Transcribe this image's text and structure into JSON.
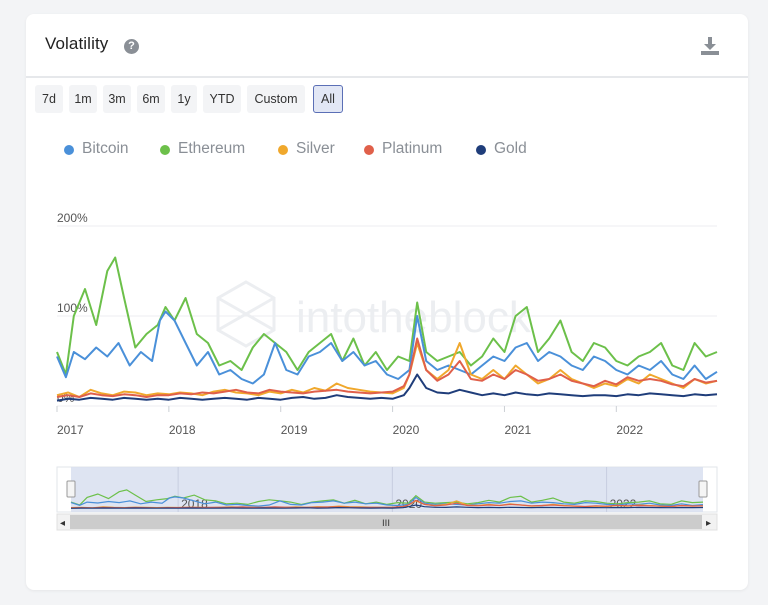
{
  "header": {
    "title": "Volatility",
    "help_glyph": "?",
    "download_icon": "download-icon"
  },
  "range_buttons": [
    {
      "label": "7d",
      "active": false
    },
    {
      "label": "1m",
      "active": false
    },
    {
      "label": "3m",
      "active": false
    },
    {
      "label": "6m",
      "active": false
    },
    {
      "label": "1y",
      "active": false
    },
    {
      "label": "YTD",
      "active": false
    },
    {
      "label": "Custom",
      "active": false
    },
    {
      "label": "All",
      "active": true
    }
  ],
  "watermark": "intotheblock",
  "colors": {
    "Bitcoin": "#4a90d9",
    "Ethereum": "#6cc04a",
    "Silver": "#f0a82c",
    "Platinum": "#e0604a",
    "Gold": "#1f3d7a",
    "navigator_fill": "#d8dff0",
    "gridline": "#eceef1"
  },
  "navigator": {
    "labels": [
      "2018",
      "2020",
      "2022"
    ],
    "scroll_grip": "III"
  },
  "chart_data": {
    "type": "line",
    "title": "",
    "xlabel": "",
    "ylabel": "",
    "ylim": [
      0,
      200
    ],
    "y_ticks": [
      "200%",
      "100%",
      "0%"
    ],
    "y_tick_values": [
      200,
      100,
      0
    ],
    "x_ticks": [
      "2017",
      "2018",
      "2019",
      "2020",
      "2021",
      "2022"
    ],
    "x_tick_values": [
      2017.0,
      2018.0,
      2019.0,
      2020.0,
      2021.0,
      2022.0
    ],
    "xlim": [
      2017.0,
      2022.9
    ],
    "grid": true,
    "legend_position": "top-left",
    "series": [
      {
        "name": "Bitcoin",
        "x": [
          2017.0,
          2017.08,
          2017.15,
          2017.25,
          2017.35,
          2017.45,
          2017.55,
          2017.65,
          2017.75,
          2017.85,
          2017.92,
          2017.97,
          2018.05,
          2018.15,
          2018.25,
          2018.35,
          2018.45,
          2018.55,
          2018.65,
          2018.75,
          2018.85,
          2018.95,
          2019.05,
          2019.15,
          2019.25,
          2019.35,
          2019.45,
          2019.55,
          2019.65,
          2019.75,
          2019.85,
          2019.95,
          2020.05,
          2020.15,
          2020.22,
          2020.3,
          2020.4,
          2020.5,
          2020.6,
          2020.7,
          2020.8,
          2020.9,
          2021.0,
          2021.1,
          2021.2,
          2021.3,
          2021.4,
          2021.5,
          2021.6,
          2021.7,
          2021.8,
          2021.9,
          2022.0,
          2022.1,
          2022.2,
          2022.3,
          2022.4,
          2022.5,
          2022.6,
          2022.7,
          2022.8,
          2022.9
        ],
        "values": [
          55,
          32,
          60,
          52,
          65,
          55,
          70,
          45,
          60,
          50,
          95,
          105,
          95,
          70,
          45,
          60,
          35,
          40,
          30,
          25,
          35,
          70,
          40,
          35,
          55,
          60,
          70,
          50,
          60,
          45,
          50,
          35,
          30,
          40,
          100,
          50,
          40,
          45,
          40,
          35,
          45,
          55,
          50,
          65,
          70,
          50,
          60,
          55,
          45,
          40,
          55,
          50,
          40,
          35,
          45,
          40,
          50,
          35,
          30,
          45,
          30,
          38
        ]
      },
      {
        "name": "Ethereum",
        "x": [
          2017.0,
          2017.08,
          2017.15,
          2017.25,
          2017.35,
          2017.45,
          2017.52,
          2017.6,
          2017.7,
          2017.8,
          2017.9,
          2017.97,
          2018.05,
          2018.15,
          2018.25,
          2018.35,
          2018.45,
          2018.55,
          2018.65,
          2018.75,
          2018.85,
          2018.95,
          2019.05,
          2019.15,
          2019.25,
          2019.35,
          2019.45,
          2019.55,
          2019.65,
          2019.75,
          2019.85,
          2019.95,
          2020.05,
          2020.15,
          2020.22,
          2020.3,
          2020.4,
          2020.5,
          2020.6,
          2020.7,
          2020.8,
          2020.9,
          2021.0,
          2021.1,
          2021.2,
          2021.3,
          2021.4,
          2021.5,
          2021.6,
          2021.7,
          2021.8,
          2021.9,
          2022.0,
          2022.1,
          2022.2,
          2022.3,
          2022.4,
          2022.5,
          2022.6,
          2022.7,
          2022.8,
          2022.9
        ],
        "values": [
          60,
          35,
          100,
          130,
          90,
          150,
          165,
          120,
          65,
          80,
          90,
          110,
          95,
          120,
          80,
          70,
          45,
          50,
          40,
          65,
          80,
          70,
          60,
          40,
          60,
          70,
          80,
          50,
          75,
          45,
          60,
          40,
          55,
          50,
          115,
          60,
          50,
          55,
          60,
          45,
          55,
          75,
          60,
          100,
          110,
          60,
          75,
          95,
          60,
          50,
          70,
          65,
          50,
          45,
          55,
          60,
          70,
          45,
          40,
          70,
          55,
          60
        ]
      },
      {
        "name": "Silver",
        "x": [
          2017.0,
          2017.1,
          2017.2,
          2017.3,
          2017.4,
          2017.5,
          2017.6,
          2017.7,
          2017.8,
          2017.9,
          2018.0,
          2018.1,
          2018.2,
          2018.3,
          2018.4,
          2018.5,
          2018.6,
          2018.7,
          2018.8,
          2018.9,
          2019.0,
          2019.1,
          2019.2,
          2019.3,
          2019.4,
          2019.5,
          2019.6,
          2019.7,
          2019.8,
          2019.9,
          2020.0,
          2020.1,
          2020.15,
          2020.22,
          2020.3,
          2020.4,
          2020.5,
          2020.6,
          2020.7,
          2020.8,
          2020.9,
          2021.0,
          2021.1,
          2021.2,
          2021.3,
          2021.4,
          2021.5,
          2021.6,
          2021.7,
          2021.8,
          2021.9,
          2022.0,
          2022.1,
          2022.2,
          2022.3,
          2022.4,
          2022.5,
          2022.6,
          2022.7,
          2022.8,
          2022.9
        ],
        "values": [
          12,
          15,
          10,
          18,
          14,
          12,
          16,
          15,
          12,
          14,
          13,
          15,
          14,
          12,
          16,
          18,
          15,
          14,
          12,
          16,
          14,
          18,
          15,
          20,
          17,
          25,
          20,
          18,
          16,
          15,
          14,
          20,
          35,
          70,
          40,
          30,
          40,
          70,
          35,
          30,
          40,
          30,
          45,
          35,
          25,
          30,
          40,
          30,
          25,
          20,
          25,
          22,
          30,
          25,
          35,
          30,
          25,
          20,
          30,
          25,
          28
        ]
      },
      {
        "name": "Platinum",
        "x": [
          2017.0,
          2017.1,
          2017.2,
          2017.3,
          2017.4,
          2017.5,
          2017.6,
          2017.7,
          2017.8,
          2017.9,
          2018.0,
          2018.1,
          2018.2,
          2018.3,
          2018.4,
          2018.5,
          2018.6,
          2018.7,
          2018.8,
          2018.9,
          2019.0,
          2019.1,
          2019.2,
          2019.3,
          2019.4,
          2019.5,
          2019.6,
          2019.7,
          2019.8,
          2019.9,
          2020.0,
          2020.1,
          2020.15,
          2020.22,
          2020.3,
          2020.4,
          2020.5,
          2020.6,
          2020.7,
          2020.8,
          2020.9,
          2021.0,
          2021.1,
          2021.2,
          2021.3,
          2021.4,
          2021.5,
          2021.6,
          2021.7,
          2021.8,
          2021.9,
          2022.0,
          2022.1,
          2022.2,
          2022.3,
          2022.4,
          2022.5,
          2022.6,
          2022.7,
          2022.8,
          2022.9
        ],
        "values": [
          10,
          12,
          10,
          14,
          12,
          11,
          13,
          12,
          10,
          12,
          12,
          14,
          13,
          15,
          14,
          16,
          18,
          15,
          14,
          18,
          16,
          15,
          14,
          16,
          17,
          18,
          16,
          15,
          14,
          15,
          16,
          22,
          35,
          75,
          40,
          28,
          35,
          50,
          30,
          28,
          35,
          30,
          40,
          35,
          28,
          30,
          35,
          28,
          25,
          22,
          28,
          24,
          32,
          28,
          30,
          28,
          24,
          22,
          30,
          26,
          28
        ]
      },
      {
        "name": "Gold",
        "x": [
          2017.0,
          2017.1,
          2017.2,
          2017.3,
          2017.4,
          2017.5,
          2017.6,
          2017.7,
          2017.8,
          2017.9,
          2018.0,
          2018.1,
          2018.2,
          2018.3,
          2018.4,
          2018.5,
          2018.6,
          2018.7,
          2018.8,
          2018.9,
          2019.0,
          2019.1,
          2019.2,
          2019.3,
          2019.4,
          2019.5,
          2019.6,
          2019.7,
          2019.8,
          2019.9,
          2020.0,
          2020.1,
          2020.15,
          2020.22,
          2020.3,
          2020.4,
          2020.5,
          2020.6,
          2020.7,
          2020.8,
          2020.9,
          2021.0,
          2021.1,
          2021.2,
          2021.3,
          2021.4,
          2021.5,
          2021.6,
          2021.7,
          2021.8,
          2021.9,
          2022.0,
          2022.1,
          2022.2,
          2022.3,
          2022.4,
          2022.5,
          2022.6,
          2022.7,
          2022.8,
          2022.9
        ],
        "values": [
          6,
          8,
          7,
          9,
          8,
          7,
          9,
          8,
          7,
          8,
          7,
          9,
          8,
          7,
          8,
          9,
          8,
          7,
          9,
          8,
          7,
          9,
          10,
          8,
          9,
          12,
          10,
          9,
          8,
          9,
          8,
          12,
          20,
          35,
          20,
          15,
          14,
          18,
          15,
          12,
          14,
          12,
          15,
          13,
          12,
          14,
          13,
          12,
          11,
          12,
          12,
          11,
          13,
          12,
          14,
          13,
          12,
          11,
          13,
          12,
          13
        ]
      }
    ]
  }
}
